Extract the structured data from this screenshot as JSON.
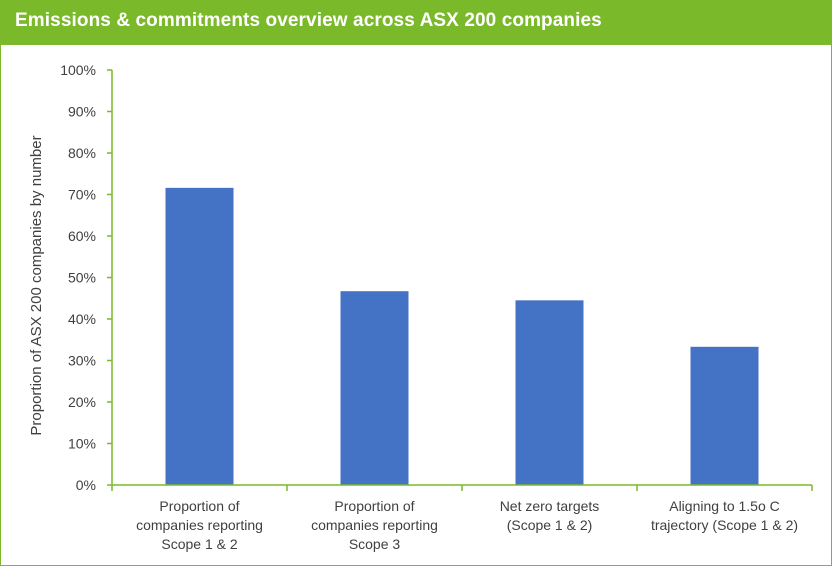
{
  "header": {
    "title": "Emissions & commitments overview across ASX 200 companies"
  },
  "colors": {
    "header_bg": "#7ab929",
    "axis": "#7ab929",
    "bar": "#4472c4",
    "text": "#404040"
  },
  "chart_data": {
    "type": "bar",
    "title": "Emissions & commitments overview across ASX 200 companies",
    "xlabel": "",
    "ylabel": "Proportion of ASX 200 companies by number",
    "ylim": [
      0,
      100
    ],
    "yticks": [
      "0%",
      "10%",
      "20%",
      "30%",
      "40%",
      "50%",
      "60%",
      "70%",
      "80%",
      "90%",
      "100%"
    ],
    "grid": false,
    "categories": [
      [
        "Proportion of",
        "companies reporting",
        "Scope 1 & 2"
      ],
      [
        "Proportion of",
        "companies reporting",
        "Scope 3"
      ],
      [
        "Net zero targets",
        "(Scope 1 & 2)"
      ],
      [
        "Aligning to 1.5o C",
        "trajectory (Scope 1 & 2)"
      ]
    ],
    "values": [
      71.6,
      46.7,
      44.5,
      33.3
    ]
  }
}
